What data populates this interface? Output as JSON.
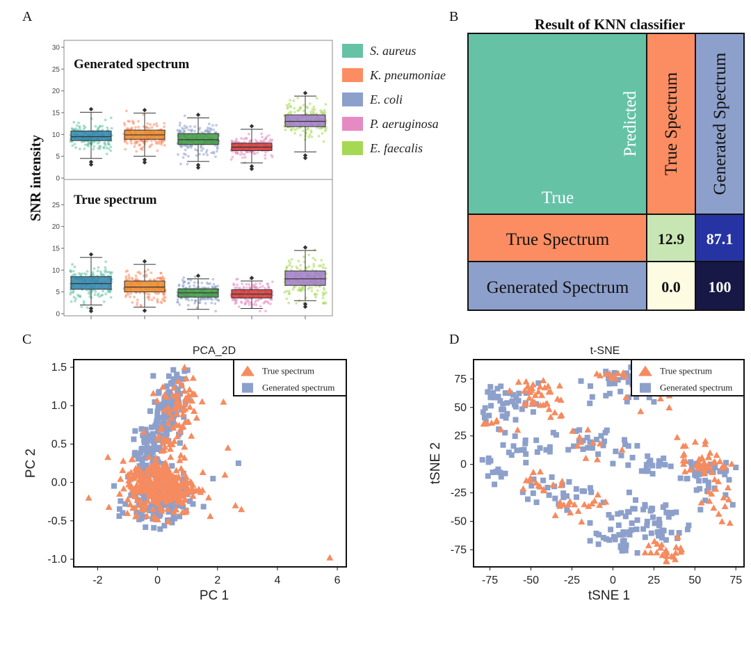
{
  "panel_labels": {
    "a": "A",
    "b": "B",
    "c": "C",
    "d": "D"
  },
  "colors": {
    "s_aureus": "#66c2a5",
    "s_aureus_box": "#2f82ad",
    "k_pneumoniae": "#fc8d62",
    "k_pneumoniae_box": "#ea8a2a",
    "e_coli": "#8da0cb",
    "e_coli_box": "#3e9a3e",
    "p_aeruginosa": "#e78ac3",
    "p_aeruginosa_box": "#d03b32",
    "e_faecalis": "#a6d854",
    "e_faecalis_box": "#a07ac9",
    "true_spectrum": "#f58b5f",
    "generated_spectrum": "#8da0cb",
    "knn_true_block": "#66c2a5",
    "knn_cell_low": "#c8e6b4",
    "knn_cell_high": "#2634a3",
    "knn_cell_zero": "#fdfbe2",
    "knn_cell_max": "#171845"
  },
  "chart_data": [
    {
      "type": "box",
      "panel": "A",
      "ylabel": "SNR intensity",
      "subplots": [
        {
          "title": "Generated spectrum",
          "ylim": [
            0,
            30
          ],
          "yticks": [
            0,
            5,
            10,
            15,
            20,
            25,
            30
          ],
          "boxes": [
            {
              "name": "S. aureus",
              "whisker_low": 4.5,
              "q1": 8.6,
              "median": 9.5,
              "q3": 10.8,
              "whisker_high": 15.1
            },
            {
              "name": "K. pneumoniae",
              "whisker_low": 5.0,
              "q1": 8.9,
              "median": 9.9,
              "q3": 11.0,
              "whisker_high": 14.9
            },
            {
              "name": "E. coli",
              "whisker_low": 3.8,
              "q1": 7.7,
              "median": 8.8,
              "q3": 10.2,
              "whisker_high": 13.8
            },
            {
              "name": "P. aeruginosa",
              "whisker_low": 3.5,
              "q1": 6.3,
              "median": 7.1,
              "q3": 8.0,
              "whisker_high": 11.2
            },
            {
              "name": "E. faecalis",
              "whisker_low": 6.0,
              "q1": 11.8,
              "median": 13.0,
              "q3": 14.5,
              "whisker_high": 18.8
            }
          ]
        },
        {
          "title": "True spectrum",
          "ylim": [
            0,
            30
          ],
          "yticks": [
            0,
            5,
            10,
            15,
            20,
            25
          ],
          "boxes": [
            {
              "name": "S. aureus",
              "whisker_low": 2.0,
              "q1": 5.6,
              "median": 6.9,
              "q3": 8.5,
              "whisker_high": 12.9
            },
            {
              "name": "K. pneumoniae",
              "whisker_low": 1.5,
              "q1": 5.0,
              "median": 6.1,
              "q3": 7.5,
              "whisker_high": 11.3
            },
            {
              "name": "E. coli",
              "whisker_low": 1.0,
              "q1": 3.8,
              "median": 4.8,
              "q3": 5.7,
              "whisker_high": 8.0
            },
            {
              "name": "P. aeruginosa",
              "whisker_low": 1.2,
              "q1": 3.6,
              "median": 4.5,
              "q3": 5.5,
              "whisker_high": 7.5
            },
            {
              "name": "E. faecalis",
              "whisker_low": 3.0,
              "q1": 6.5,
              "median": 8.0,
              "q3": 9.8,
              "whisker_high": 14.5
            }
          ]
        }
      ],
      "legend": [
        "S. aureus",
        "K. pneumoniae",
        "E. coli",
        "P. aeruginosa",
        "E. faecalis"
      ],
      "legend_placement": "right"
    },
    {
      "type": "table",
      "panel": "B",
      "title": "Result of KNN classifier",
      "header_corner": {
        "true_label": "True",
        "predicted_label": "Predicted"
      },
      "columns": [
        "True Spectrum",
        "Generated Spectrum"
      ],
      "rows": [
        {
          "label": "True Spectrum",
          "values": [
            "12.9",
            "87.1"
          ]
        },
        {
          "label": "Generated Spectrum",
          "values": [
            "0.0",
            "100"
          ]
        }
      ]
    },
    {
      "type": "scatter",
      "panel": "C",
      "title": "PCA_2D",
      "xlabel": "PC 1",
      "ylabel": "PC 2",
      "xlim": [
        -2.8,
        6.3
      ],
      "ylim": [
        -1.1,
        1.6
      ],
      "xticks": [
        -2,
        0,
        2,
        4,
        6
      ],
      "yticks": [
        -1.0,
        -0.5,
        0.0,
        0.5,
        1.0,
        1.5
      ],
      "ytick_labels": [
        "-1.0",
        "-0.5",
        "0.0",
        "0.5",
        "1.0",
        "1.5"
      ],
      "legend_placement": "top-right",
      "series": [
        {
          "name": "True spectrum",
          "marker": "triangle",
          "clusters": [
            {
              "cx": 0.2,
              "cy": -0.05,
              "sx": 0.55,
              "sy": 0.18,
              "n": 260
            },
            {
              "cx": 0.35,
              "cy": 0.55,
              "sx": 0.35,
              "sy": 0.28,
              "n": 40
            },
            {
              "cx": 0.75,
              "cy": 1.05,
              "sx": 0.35,
              "sy": 0.2,
              "n": 45
            },
            {
              "cx": -0.85,
              "cy": 0.05,
              "sx": 0.15,
              "sy": 0.15,
              "n": 25
            }
          ],
          "points": [
            [
              -2.3,
              -0.2
            ],
            [
              5.75,
              -0.98
            ],
            [
              2.6,
              -0.3
            ],
            [
              2.8,
              -0.35
            ],
            [
              2.25,
              0.1
            ],
            [
              2.35,
              0.45
            ],
            [
              2.2,
              1.05
            ],
            [
              1.5,
              -0.1
            ],
            [
              0.9,
              1.5
            ]
          ]
        },
        {
          "name": "Generated spectrum",
          "marker": "square",
          "clusters": [
            {
              "cx": 0.05,
              "cy": -0.25,
              "sx": 0.5,
              "sy": 0.16,
              "n": 150
            },
            {
              "cx": -0.35,
              "cy": 0.35,
              "sx": 0.25,
              "sy": 0.18,
              "n": 70
            },
            {
              "cx": 0.05,
              "cy": 0.7,
              "sx": 0.25,
              "sy": 0.18,
              "n": 60
            },
            {
              "cx": 0.5,
              "cy": 1.1,
              "sx": 0.25,
              "sy": 0.18,
              "n": 55
            }
          ],
          "points": [
            [
              1.85,
              0.05
            ],
            [
              2.7,
              0.25
            ],
            [
              0.9,
              1.45
            ]
          ]
        }
      ]
    },
    {
      "type": "scatter",
      "panel": "D",
      "title": "t-SNE",
      "xlabel": "tSNE 1",
      "ylabel": "tSNE 2",
      "xlim": [
        -85,
        80
      ],
      "ylim": [
        -90,
        92
      ],
      "xticks": [
        -75,
        -50,
        -25,
        0,
        25,
        50,
        75
      ],
      "yticks": [
        -75,
        -50,
        -25,
        0,
        25,
        50,
        75
      ],
      "legend_placement": "top-right",
      "series": [
        {
          "name": "True spectrum",
          "marker": "triangle",
          "clusters": [
            {
              "cx": -50,
              "cy": 60,
              "sx": 7,
              "sy": 7,
              "n": 30
            },
            {
              "cx": -70,
              "cy": 35,
              "sx": 5,
              "sy": 6,
              "n": 8
            },
            {
              "cx": -35,
              "cy": 50,
              "sx": 4,
              "sy": 8,
              "n": 8
            },
            {
              "cx": 0,
              "cy": 80,
              "sx": 6,
              "sy": 5,
              "n": 12
            },
            {
              "cx": 20,
              "cy": 60,
              "sx": 6,
              "sy": 6,
              "n": 8
            },
            {
              "cx": 55,
              "cy": 5,
              "sx": 8,
              "sy": 10,
              "n": 40
            },
            {
              "cx": 63,
              "cy": -35,
              "sx": 5,
              "sy": 10,
              "n": 15
            },
            {
              "cx": 35,
              "cy": -75,
              "sx": 7,
              "sy": 5,
              "n": 25
            },
            {
              "cx": -20,
              "cy": -35,
              "sx": 10,
              "sy": 5,
              "n": 18
            },
            {
              "cx": -45,
              "cy": -15,
              "sx": 8,
              "sy": 6,
              "n": 14
            },
            {
              "cx": -15,
              "cy": 15,
              "sx": 8,
              "sy": 8,
              "n": 10
            }
          ],
          "points": []
        },
        {
          "name": "Generated spectrum",
          "marker": "square",
          "clusters": [
            {
              "cx": -72,
              "cy": 50,
              "sx": 6,
              "sy": 10,
              "n": 25
            },
            {
              "cx": -55,
              "cy": 55,
              "sx": 6,
              "sy": 6,
              "n": 18
            },
            {
              "cx": 10,
              "cy": 70,
              "sx": 12,
              "sy": 10,
              "n": 40
            },
            {
              "cx": -15,
              "cy": 20,
              "sx": 12,
              "sy": 6,
              "n": 25
            },
            {
              "cx": -55,
              "cy": 15,
              "sx": 8,
              "sy": 6,
              "n": 18
            },
            {
              "cx": -75,
              "cy": -5,
              "sx": 5,
              "sy": 6,
              "n": 14
            },
            {
              "cx": -30,
              "cy": -25,
              "sx": 12,
              "sy": 6,
              "n": 25
            },
            {
              "cx": 20,
              "cy": 0,
              "sx": 10,
              "sy": 6,
              "n": 22
            },
            {
              "cx": 55,
              "cy": -10,
              "sx": 8,
              "sy": 10,
              "n": 40
            },
            {
              "cx": 20,
              "cy": -50,
              "sx": 15,
              "sy": 12,
              "n": 60
            },
            {
              "cx": 0,
              "cy": -65,
              "sx": 8,
              "sy": 6,
              "n": 20
            }
          ],
          "points": []
        }
      ]
    }
  ]
}
